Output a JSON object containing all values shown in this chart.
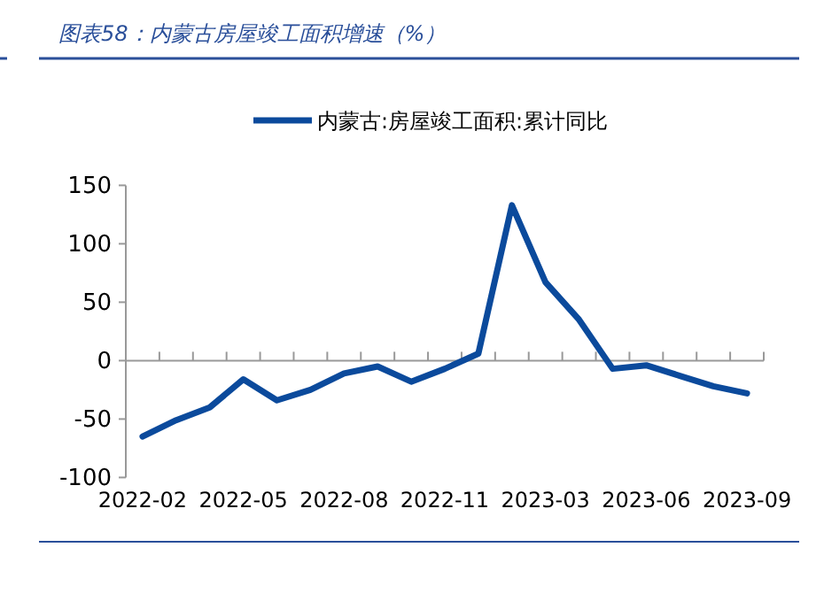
{
  "chart_data": {
    "type": "line",
    "title": "图表58：内蒙古房屋竣工面积增速（%）",
    "categories": [
      "2022-02",
      null,
      null,
      "2022-05",
      null,
      null,
      "2022-08",
      null,
      null,
      "2022-11",
      null,
      null,
      "2023-03",
      null,
      null,
      "2023-06",
      null,
      null,
      "2023-09"
    ],
    "series": [
      {
        "name": "内蒙古:房屋竣工面积:累计同比",
        "color": "#0b4a9c",
        "values": [
          -65,
          -51,
          -40,
          -16,
          -34,
          -25,
          -11,
          -5,
          -18,
          -7,
          6,
          133,
          67,
          35,
          -7,
          -4,
          -13,
          -22,
          -28
        ]
      }
    ],
    "ylim": [
      -100,
      150
    ],
    "yticks": [
      -100,
      -50,
      0,
      50,
      100,
      150
    ],
    "legend": "top",
    "marker": "none",
    "line_style": "solid"
  }
}
